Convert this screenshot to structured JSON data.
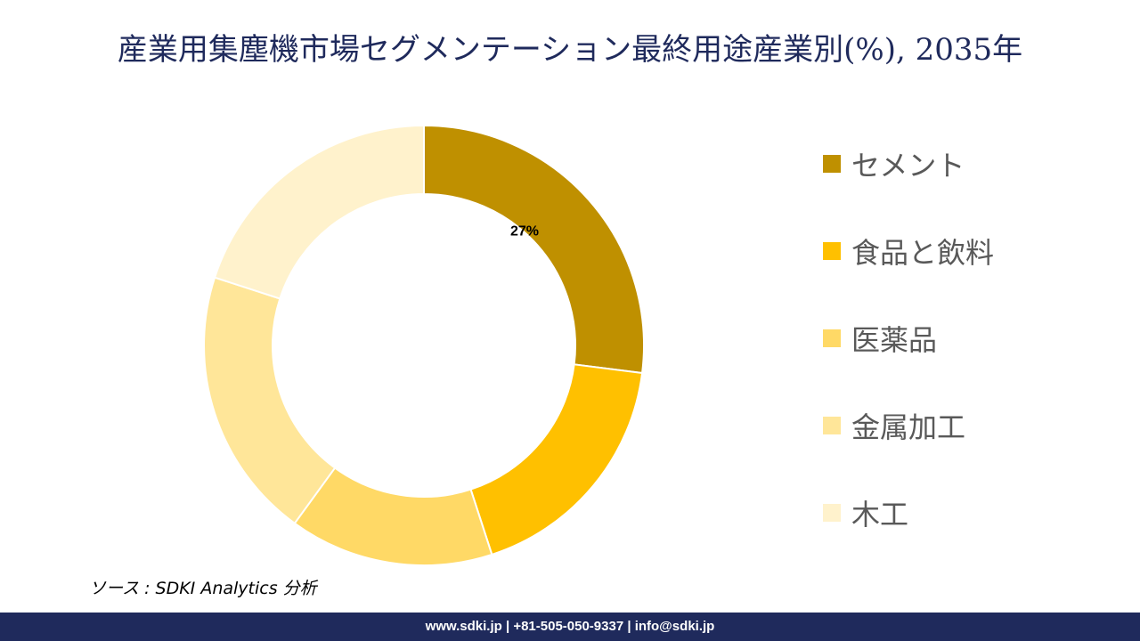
{
  "title": "産業用集塵機市場セグメンテーション最終用途産業別(%), 2035年",
  "chart_data": {
    "type": "pie",
    "variant": "donut",
    "title": "産業用集塵機市場セグメンテーション最終用途産業別(%), 2035年",
    "labels": [
      "セメント",
      "食品と飲料",
      "医薬品",
      "金属加工",
      "木工"
    ],
    "values": [
      27,
      18,
      15,
      20,
      20
    ],
    "colors": [
      "#bf9000",
      "#ffc000",
      "#ffd966",
      "#ffe699",
      "#fff2cc"
    ],
    "data_labels": [
      "27%",
      "",
      "",
      "",
      ""
    ],
    "legend_position": "right"
  },
  "source": "ソース : SDKI Analytics 分析",
  "footer": "www.sdki.jp | +81-505-050-9337 | info@sdki.jp"
}
